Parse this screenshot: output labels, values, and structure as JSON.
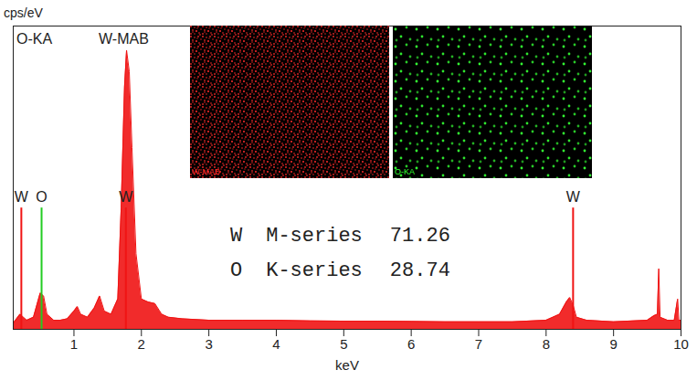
{
  "chart_data": {
    "type": "area",
    "x_label": "keV",
    "y_label": "cps/eV",
    "annotations": [
      "O-KA",
      "W-MAB"
    ],
    "x": [
      0.1,
      0.2,
      0.25,
      0.3,
      0.4,
      0.45,
      0.5,
      0.55,
      0.6,
      0.7,
      0.8,
      0.9,
      1.0,
      1.05,
      1.1,
      1.2,
      1.3,
      1.38,
      1.45,
      1.55,
      1.65,
      1.7,
      1.75,
      1.78,
      1.82,
      1.86,
      1.92,
      2.0,
      2.1,
      2.2,
      2.3,
      2.4,
      2.6,
      3.0,
      3.5,
      4.0,
      4.5,
      5.0,
      5.5,
      6.0,
      6.5,
      7.0,
      7.5,
      8.0,
      8.2,
      8.3,
      8.35,
      8.4,
      8.45,
      8.6,
      9.0,
      9.5,
      9.6,
      9.65,
      9.67,
      9.69,
      9.8,
      9.9,
      9.95,
      9.97,
      10.0
    ],
    "values": [
      2,
      5,
      4,
      3,
      4,
      8,
      12,
      11,
      5,
      3,
      3,
      3.5,
      6,
      7.5,
      5,
      4,
      7,
      11,
      6,
      5,
      10,
      40,
      80,
      92,
      85,
      60,
      25,
      10,
      9,
      8.5,
      5,
      4,
      3.5,
      3,
      3,
      3,
      2.8,
      2.7,
      2.7,
      2.6,
      2.5,
      2.5,
      2.5,
      3,
      5,
      9,
      10.5,
      8,
      4,
      3,
      2.5,
      3,
      4.5,
      5,
      20,
      4,
      3,
      3,
      10,
      3,
      3
    ],
    "color": "#f01414",
    "xlim": [
      0.1,
      10
    ],
    "xticks": [
      1,
      2,
      3,
      4,
      5,
      6,
      7,
      8,
      9,
      10
    ],
    "ylim": [
      0,
      100
    ],
    "tick_labels": "x",
    "peak_markers": [
      {
        "label": "W",
        "x": 0.22,
        "height": 40,
        "color": "#f01414"
      },
      {
        "label": "O",
        "x": 0.52,
        "height": 40,
        "color": "#22cc22"
      },
      {
        "label": "W",
        "x": 1.77,
        "height": 40,
        "color": "#f01414"
      },
      {
        "label": "W",
        "x": 8.4,
        "height": 40,
        "color": "#f01414"
      }
    ],
    "maps": [
      {
        "label": "W-MAB",
        "color": "#ff2a2a"
      },
      {
        "label": "O-KA",
        "color": "#33ff33"
      }
    ],
    "composition": [
      {
        "element": "W",
        "series": "M-series",
        "value": 71.26
      },
      {
        "element": "O",
        "series": "K-series",
        "value": 28.74
      }
    ]
  }
}
